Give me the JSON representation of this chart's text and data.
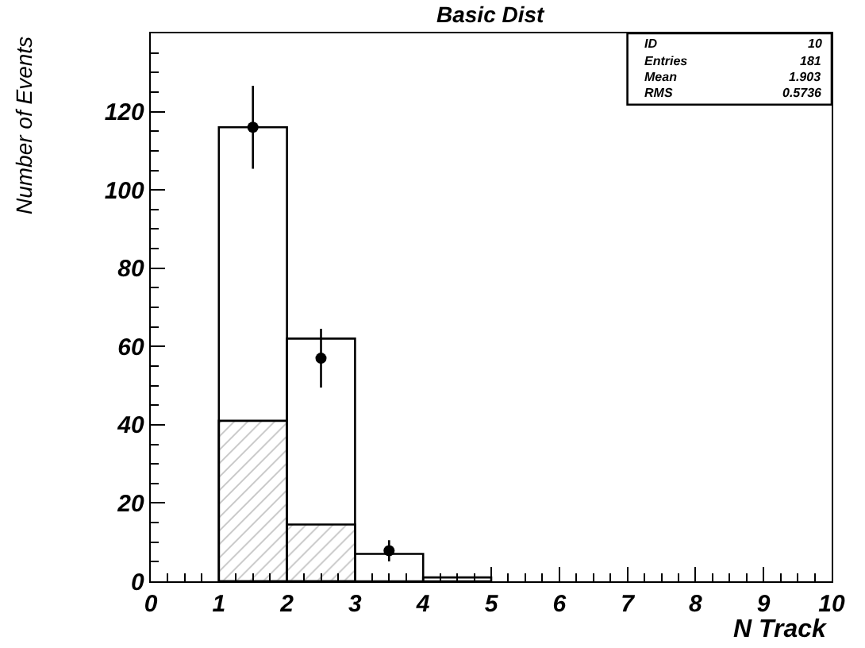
{
  "chart_data": {
    "type": "histogram",
    "title": "Basic Dist",
    "xlabel": "N Track",
    "ylabel": "Number of Events",
    "bins": [
      1,
      2,
      3,
      4,
      5
    ],
    "series": [
      {
        "color": "#000000",
        "values": [
          116,
          62,
          7,
          1
        ]
      },
      {
        "color": "#000000",
        "values": [
          41,
          14.5,
          null,
          null
        ]
      },
      {
        "type": "scatter",
        "color": "#000000",
        "x": [
          1.5,
          2.5,
          3.5
        ],
        "values": [
          116,
          57,
          7.8
        ],
        "errors": [
          10.6,
          7.5,
          2.7
        ]
      }
    ],
    "annotations": [
      "ID",
      "10",
      "Entries",
      "181",
      "Mean",
      "1.903",
      "RMS",
      "0.5736"
    ],
    "xlim": [
      0,
      10
    ],
    "ylim": [
      0,
      140
    ],
    "xticks": [
      0,
      1,
      2,
      3,
      4,
      5,
      6,
      7,
      8,
      9,
      10
    ],
    "yticks": [
      0,
      20,
      40,
      60,
      80,
      100,
      120
    ],
    "marker": "circle"
  }
}
